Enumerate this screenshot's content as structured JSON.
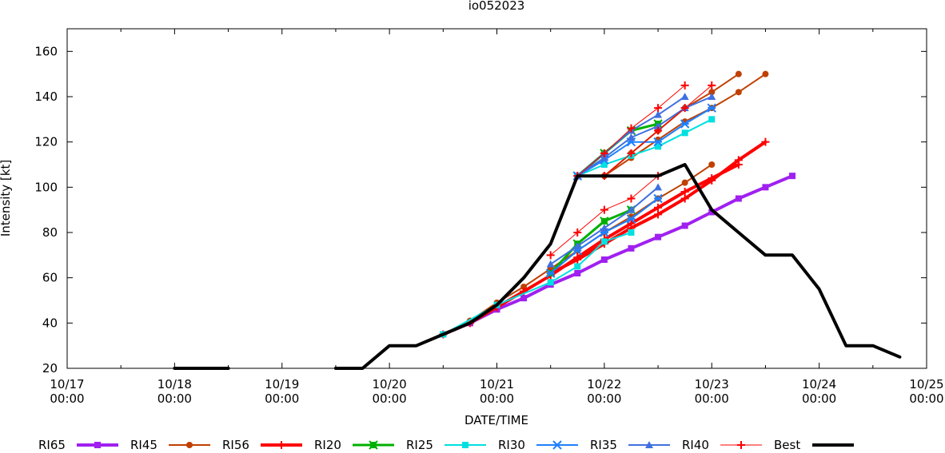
{
  "chart_data": {
    "type": "line",
    "title": "io052023",
    "xlabel": "DATE/TIME",
    "ylabel": "Intensity [kt]",
    "xlim": [
      "10/17 00:00",
      "10/25 00:00"
    ],
    "ylim": [
      20,
      170
    ],
    "x_ticks": [
      {
        "line1": "10/17",
        "line2": "00:00",
        "day": 0
      },
      {
        "line1": "10/18",
        "line2": "00:00",
        "day": 1
      },
      {
        "line1": "10/19",
        "line2": "00:00",
        "day": 2
      },
      {
        "line1": "10/20",
        "line2": "00:00",
        "day": 3
      },
      {
        "line1": "10/21",
        "line2": "00:00",
        "day": 4
      },
      {
        "line1": "10/22",
        "line2": "00:00",
        "day": 5
      },
      {
        "line1": "10/23",
        "line2": "00:00",
        "day": 6
      },
      {
        "line1": "10/24",
        "line2": "00:00",
        "day": 7
      },
      {
        "line1": "10/25",
        "line2": "00:00",
        "day": 8
      }
    ],
    "y_ticks": [
      20,
      40,
      60,
      80,
      100,
      120,
      140,
      160
    ],
    "legend_position": "bottom",
    "series": [
      {
        "name": "RI65",
        "color": "#a020f0",
        "marker": "square",
        "width": 4,
        "lines": [
          {
            "x": [
              "10/20 12:00",
              "10/20 18:00",
              "10/21 00:00",
              "10/21 06:00",
              "10/21 12:00",
              "10/21 18:00",
              "10/22 00:00",
              "10/22 06:00",
              "10/22 12:00",
              "10/22 18:00",
              "10/23 00:00",
              "10/23 06:00",
              "10/23 12:00",
              "10/23 18:00"
            ],
            "y": [
              35,
              40,
              46,
              51,
              57,
              62,
              68,
              73,
              78,
              83,
              89,
              95,
              100,
              105
            ]
          }
        ]
      },
      {
        "name": "RI45",
        "color": "#c04000",
        "marker": "circle",
        "width": 2,
        "lines": [
          {
            "x": [
              "10/20 12:00",
              "10/20 18:00",
              "10/21 00:00",
              "10/21 06:00",
              "10/21 12:00",
              "10/21 18:00",
              "10/22 00:00",
              "10/22 06:00",
              "10/22 12:00",
              "10/22 18:00",
              "10/23 00:00"
            ],
            "y": [
              35,
              41,
              49,
              56,
              64,
              72,
              80,
              87,
              95,
              102,
              110
            ]
          },
          {
            "x": [
              "10/21 18:00",
              "10/22 00:00",
              "10/22 06:00",
              "10/22 12:00",
              "10/22 18:00",
              "10/23 00:00",
              "10/23 06:00"
            ],
            "y": [
              105,
              105,
              115,
              125,
              135,
              142,
              150
            ]
          },
          {
            "x": [
              "10/22 00:00",
              "10/22 06:00",
              "10/22 12:00",
              "10/22 18:00",
              "10/23 00:00",
              "10/23 06:00",
              "10/23 12:00"
            ],
            "y": [
              105,
              113,
              121,
              129,
              135,
              142,
              150
            ]
          }
        ]
      },
      {
        "name": "RI56",
        "color": "#ff0000",
        "marker": "plus",
        "width": 4,
        "lines": [
          {
            "x": [
              "10/20 12:00",
              "10/20 18:00",
              "10/21 00:00",
              "10/21 06:00",
              "10/21 12:00",
              "10/21 18:00",
              "10/22 00:00",
              "10/22 06:00",
              "10/22 12:00",
              "10/22 18:00",
              "10/23 00:00",
              "10/23 06:00"
            ],
            "y": [
              35,
              40,
              47,
              54,
              61,
              69,
              77,
              84,
              91,
              98,
              104,
              110
            ]
          },
          {
            "x": [
              "10/21 12:00",
              "10/21 18:00",
              "10/22 00:00",
              "10/22 06:00",
              "10/22 12:00",
              "10/22 18:00",
              "10/23 00:00",
              "10/23 06:00",
              "10/23 12:00"
            ],
            "y": [
              62,
              68,
              75,
              82,
              88,
              95,
              103,
              112,
              120
            ]
          }
        ]
      },
      {
        "name": "RI20",
        "color": "#00b000",
        "marker": "x-square",
        "width": 3,
        "lines": [
          {
            "x": [
              "10/21 18:00",
              "10/22 00:00",
              "10/22 06:00",
              "10/22 12:00"
            ],
            "y": [
              105,
              115,
              125,
              128
            ]
          },
          {
            "x": [
              "10/21 12:00",
              "10/21 18:00",
              "10/22 00:00",
              "10/22 06:00"
            ],
            "y": [
              62,
              75,
              85,
              90
            ]
          }
        ]
      },
      {
        "name": "RI25",
        "color": "#00e0e0",
        "marker": "square",
        "width": 2,
        "lines": [
          {
            "x": [
              "10/21 18:00",
              "10/22 00:00",
              "10/22 06:00",
              "10/22 12:00",
              "10/22 18:00",
              "10/23 00:00"
            ],
            "y": [
              105,
              110,
              114,
              118,
              124,
              130
            ]
          },
          {
            "x": [
              "10/20 12:00",
              "10/21 00:00",
              "10/21 12:00",
              "10/21 18:00",
              "10/22 00:00",
              "10/22 06:00"
            ],
            "y": [
              35,
              48,
              58,
              65,
              76,
              80
            ]
          }
        ]
      },
      {
        "name": "RI30",
        "color": "#1e80ff",
        "marker": "star",
        "width": 2,
        "lines": [
          {
            "x": [
              "10/21 18:00",
              "10/22 00:00",
              "10/22 06:00",
              "10/22 12:00",
              "10/22 18:00",
              "10/23 00:00"
            ],
            "y": [
              105,
              112,
              120,
              120,
              128,
              135
            ]
          },
          {
            "x": [
              "10/21 12:00",
              "10/21 18:00",
              "10/22 00:00",
              "10/22 06:00",
              "10/22 12:00"
            ],
            "y": [
              62,
              72,
              80,
              86,
              95
            ]
          }
        ]
      },
      {
        "name": "RI35",
        "color": "#4070e0",
        "marker": "triangle",
        "width": 2,
        "lines": [
          {
            "x": [
              "10/21 18:00",
              "10/22 00:00",
              "10/22 06:00",
              "10/22 12:00",
              "10/22 18:00",
              "10/23 00:00"
            ],
            "y": [
              105,
              113,
              122,
              127,
              135,
              140
            ]
          },
          {
            "x": [
              "10/21 12:00",
              "10/21 18:00",
              "10/22 00:00",
              "10/22 06:00",
              "10/22 12:00"
            ],
            "y": [
              66,
              74,
              82,
              90,
              100
            ]
          },
          {
            "x": [
              "10/21 18:00",
              "10/22 00:00",
              "10/22 06:00",
              "10/22 12:00",
              "10/22 18:00"
            ],
            "y": [
              105,
              115,
              125,
              132,
              140
            ]
          }
        ]
      },
      {
        "name": "RI40",
        "color": "#ff0000",
        "marker": "plus",
        "width": 1,
        "lines": [
          {
            "x": [
              "10/21 18:00",
              "10/22 00:00",
              "10/22 06:00",
              "10/22 12:00",
              "10/22 18:00"
            ],
            "y": [
              105,
              115,
              126,
              135,
              145
            ]
          },
          {
            "x": [
              "10/22 00:00",
              "10/22 06:00",
              "10/22 12:00",
              "10/22 18:00",
              "10/23 00:00"
            ],
            "y": [
              105,
              115,
              125,
              135,
              145
            ]
          },
          {
            "x": [
              "10/21 12:00",
              "10/21 18:00",
              "10/22 00:00",
              "10/22 06:00",
              "10/22 12:00"
            ],
            "y": [
              70,
              80,
              90,
              95,
              105
            ]
          }
        ]
      },
      {
        "name": "Best",
        "color": "#000000",
        "marker": "none",
        "width": 4,
        "lines": [
          {
            "x": [
              "10/18 00:00",
              "10/18 06:00",
              "10/18 12:00"
            ],
            "y": [
              20,
              20,
              20
            ]
          },
          {
            "x": [
              "10/19 12:00",
              "10/19 18:00",
              "10/20 00:00",
              "10/20 06:00",
              "10/20 12:00",
              "10/20 18:00",
              "10/21 00:00",
              "10/21 06:00",
              "10/21 12:00",
              "10/21 18:00",
              "10/22 00:00",
              "10/22 06:00",
              "10/22 12:00",
              "10/22 18:00",
              "10/23 00:00",
              "10/23 06:00",
              "10/23 12:00",
              "10/23 18:00",
              "10/24 00:00",
              "10/24 06:00",
              "10/24 12:00",
              "10/24 18:00"
            ],
            "y": [
              20,
              20,
              30,
              30,
              35,
              40,
              48,
              60,
              75,
              105,
              105,
              105,
              105,
              110,
              90,
              80,
              70,
              70,
              55,
              30,
              30,
              25
            ]
          }
        ]
      }
    ]
  }
}
